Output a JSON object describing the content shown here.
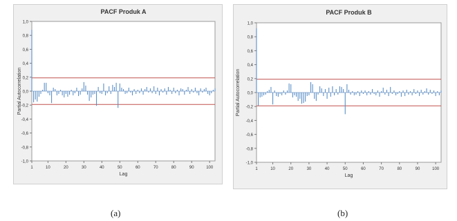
{
  "captions": {
    "a": "(a)",
    "b": "(b)"
  },
  "colors": {
    "bar": "#5b8fc7",
    "ci_line": "#c0504d",
    "zero_line": "#9db4d6",
    "panel_bg": "#f0f0f0",
    "plot_bg": "#ffffff"
  },
  "chart_data": [
    {
      "type": "bar",
      "title": "PACF Produk A",
      "xlabel": "Lag",
      "ylabel": "Partial Autocorrelation",
      "xlim": [
        1,
        103
      ],
      "ylim": [
        -1,
        1
      ],
      "x_ticks": [
        1,
        10,
        20,
        30,
        40,
        50,
        60,
        70,
        80,
        90,
        100
      ],
      "y_ticks": [
        "1,0",
        "0,8",
        "0,6",
        "0,4",
        "0,2",
        "0,0",
        "-0,2",
        "-0,4",
        "-0,6",
        "-0,8",
        "-1,0"
      ],
      "y_tick_values": [
        1,
        0.8,
        0.6,
        0.4,
        0.2,
        0,
        -0.2,
        -0.4,
        -0.6,
        -0.8,
        -1
      ],
      "confidence_limit": 0.19,
      "lags": [
        1,
        2,
        3,
        4,
        5,
        6,
        7,
        8,
        9,
        10,
        11,
        12,
        13,
        14,
        15,
        16,
        17,
        18,
        19,
        20,
        21,
        22,
        23,
        24,
        25,
        26,
        27,
        28,
        29,
        30,
        31,
        32,
        33,
        34,
        35,
        36,
        37,
        38,
        39,
        40,
        41,
        42,
        43,
        44,
        45,
        46,
        47,
        48,
        49,
        50,
        51,
        52,
        53,
        54,
        55,
        56,
        57,
        58,
        59,
        60,
        61,
        62,
        63,
        64,
        65,
        66,
        67,
        68,
        69,
        70,
        71,
        72,
        73,
        74,
        75,
        76,
        77,
        78,
        79,
        80,
        81,
        82,
        83,
        84,
        85,
        86,
        87,
        88,
        89,
        90,
        91,
        92,
        93,
        94,
        95,
        96,
        97,
        98,
        99,
        100,
        101,
        102,
        103
      ],
      "values": [
        0.88,
        -0.16,
        -0.12,
        -0.15,
        -0.08,
        -0.04,
        0.02,
        0.12,
        0.12,
        -0.03,
        -0.06,
        -0.17,
        0.05,
        0.03,
        -0.06,
        -0.04,
        0.02,
        -0.06,
        -0.09,
        -0.04,
        -0.08,
        -0.05,
        0.02,
        -0.06,
        -0.03,
        0.05,
        -0.07,
        -0.05,
        0.04,
        0.13,
        0.08,
        -0.05,
        -0.14,
        -0.09,
        -0.05,
        -0.04,
        -0.21,
        0.06,
        -0.03,
        -0.04,
        0.11,
        -0.06,
        -0.03,
        0.07,
        -0.04,
        0.09,
        0.06,
        0.12,
        -0.24,
        0.11,
        0.05,
        0.03,
        -0.04,
        -0.03,
        0.05,
        -0.02,
        -0.06,
        0.03,
        -0.04,
        0.02,
        -0.03,
        0.04,
        -0.05,
        0.03,
        0.06,
        -0.02,
        0.04,
        -0.03,
        0.07,
        -0.04,
        0.05,
        -0.06,
        0.03,
        -0.02,
        0.04,
        -0.05,
        0.06,
        0.02,
        -0.04,
        0.05,
        -0.03,
        0.02,
        -0.06,
        0.04,
        0.03,
        -0.05,
        0.02,
        0.06,
        -0.04,
        0.03,
        -0.02,
        0.05,
        -0.03,
        -0.06,
        0.04,
        -0.02,
        0.03,
        0.05,
        -0.04,
        -0.06,
        -0.03,
        0.02,
        0.04
      ]
    },
    {
      "type": "bar",
      "title": "PACF Produk B",
      "xlabel": "Lag",
      "ylabel": "Partial Autocorrelation",
      "xlim": [
        1,
        103
      ],
      "ylim": [
        -1,
        1
      ],
      "x_ticks": [
        1,
        10,
        20,
        30,
        40,
        50,
        60,
        70,
        80,
        90,
        100
      ],
      "y_ticks": [
        "1,0",
        "0,8",
        "0,6",
        "0,4",
        "0,2",
        "0,0",
        "-0,2",
        "-0,4",
        "-0,6",
        "-0,8",
        "-1,0"
      ],
      "y_tick_values": [
        1,
        0.8,
        0.6,
        0.4,
        0.2,
        0,
        -0.2,
        -0.4,
        -0.6,
        -0.8,
        -1
      ],
      "confidence_limit": 0.19,
      "lags": [
        1,
        2,
        3,
        4,
        5,
        6,
        7,
        8,
        9,
        10,
        11,
        12,
        13,
        14,
        15,
        16,
        17,
        18,
        19,
        20,
        21,
        22,
        23,
        24,
        25,
        26,
        27,
        28,
        29,
        30,
        31,
        32,
        33,
        34,
        35,
        36,
        37,
        38,
        39,
        40,
        41,
        42,
        43,
        44,
        45,
        46,
        47,
        48,
        49,
        50,
        51,
        52,
        53,
        54,
        55,
        56,
        57,
        58,
        59,
        60,
        61,
        62,
        63,
        64,
        65,
        66,
        67,
        68,
        69,
        70,
        71,
        72,
        73,
        74,
        75,
        76,
        77,
        78,
        79,
        80,
        81,
        82,
        83,
        84,
        85,
        86,
        87,
        88,
        89,
        90,
        91,
        92,
        93,
        94,
        95,
        96,
        97,
        98,
        99,
        100,
        101,
        102,
        103
      ],
      "values": [
        0.92,
        -0.19,
        -0.07,
        -0.06,
        -0.04,
        -0.03,
        0.02,
        0.04,
        0.08,
        -0.17,
        0.03,
        -0.05,
        -0.06,
        -0.02,
        -0.04,
        0.03,
        -0.03,
        0.03,
        0.13,
        0.12,
        -0.07,
        -0.04,
        -0.06,
        -0.12,
        -0.09,
        -0.16,
        -0.15,
        -0.13,
        -0.05,
        -0.04,
        0.15,
        0.12,
        -0.09,
        -0.12,
        -0.03,
        0.09,
        0.06,
        -0.05,
        0.05,
        -0.09,
        0.07,
        -0.06,
        0.09,
        -0.04,
        0.05,
        -0.03,
        0.09,
        0.08,
        0.05,
        -0.31,
        0.12,
        0.04,
        -0.03,
        0.02,
        -0.04,
        -0.03,
        0.02,
        -0.05,
        0.03,
        -0.02,
        0.03,
        -0.04,
        0.02,
        -0.03,
        0.05,
        -0.02,
        -0.04,
        0.03,
        -0.06,
        0.02,
        0.07,
        -0.03,
        0.04,
        -0.05,
        0.08,
        -0.02,
        0.03,
        -0.04,
        -0.02,
        0.02,
        -0.06,
        0.03,
        -0.05,
        0.04,
        -0.03,
        0.02,
        -0.04,
        0.05,
        -0.02,
        0.03,
        -0.05,
        0.04,
        -0.03,
        0.02,
        0.06,
        -0.03,
        0.04,
        -0.02,
        0.03,
        -0.05,
        0.02,
        -0.04,
        0.03
      ]
    }
  ]
}
